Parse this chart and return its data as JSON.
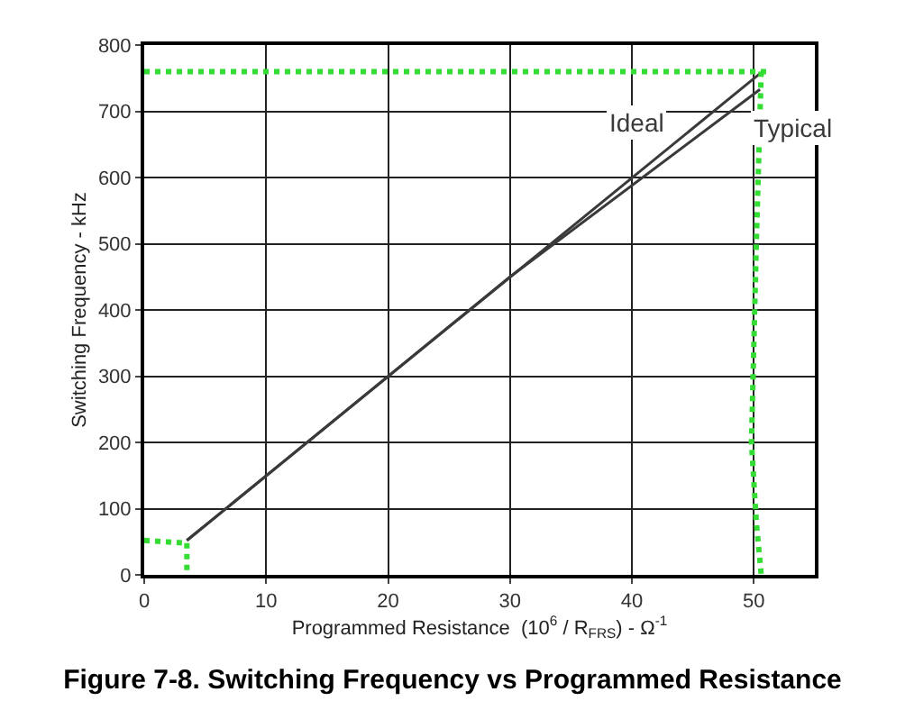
{
  "chart_data": {
    "type": "line",
    "title": "Figure 7-8. Switching Frequency vs Programmed Resistance",
    "xlabel": "Programmed Resistance  (10$^{6}$ / R$_{FRS}$) - Ω$^{-1}$",
    "ylabel": "Switching Frequency - kHz",
    "xlim": [
      0,
      55
    ],
    "xticks": [
      0,
      10,
      20,
      30,
      40,
      50
    ],
    "ylim": [
      0,
      800
    ],
    "yticks": [
      0,
      100,
      200,
      300,
      400,
      500,
      600,
      700,
      800
    ],
    "grid": true,
    "legend": false,
    "marker": "none",
    "series": [
      {
        "name": "Ideal",
        "color": "#3a3a3a",
        "x": [
          3.5,
          50.5
        ],
        "values": [
          52,
          757
        ]
      },
      {
        "name": "Typical",
        "color": "#3a3a3a",
        "x": [
          3.5,
          30,
          50.5
        ],
        "values": [
          52,
          450,
          733
        ]
      },
      {
        "color": "#33dd33",
        "line_style": "dotted",
        "x": [
          0,
          51
        ],
        "values": [
          760,
          760
        ]
      },
      {
        "color": "#33dd33",
        "line_style": "dotted",
        "x": [
          50.6,
          50.2,
          49.8,
          50.2,
          50.6
        ],
        "values": [
          760,
          500,
          200,
          80,
          0
        ]
      },
      {
        "color": "#33dd33",
        "line_style": "dotted",
        "x": [
          0,
          3.5
        ],
        "values": [
          52,
          48
        ]
      },
      {
        "color": "#33dd33",
        "line_style": "dotted",
        "x": [
          3.5,
          3.5
        ],
        "values": [
          48,
          0
        ]
      }
    ]
  }
}
